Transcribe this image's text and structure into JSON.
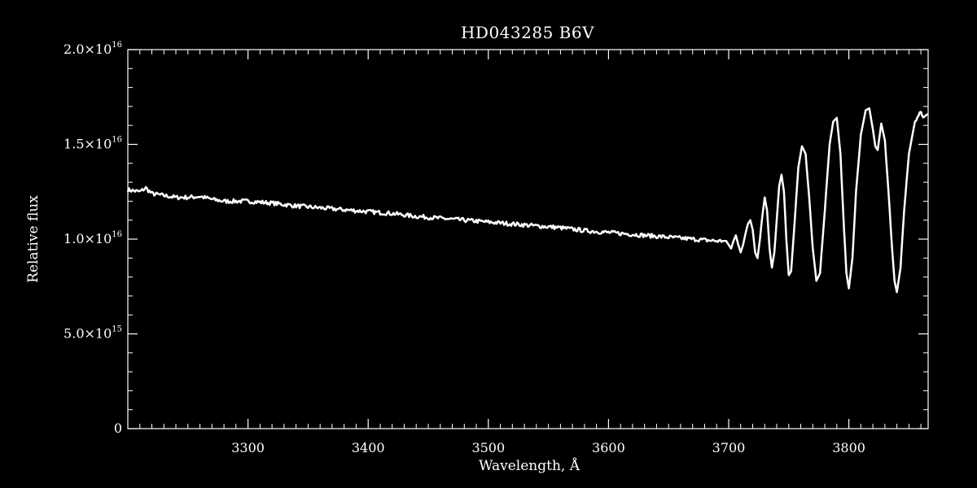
{
  "chart_data": {
    "type": "line",
    "title": "HD043285   B6V",
    "xlabel": "Wavelength, Å",
    "ylabel": "Relative flux",
    "xlim": [
      3200,
      3866
    ],
    "ylim": [
      0,
      2e+16
    ],
    "grid": false,
    "x_ticks": [
      {
        "value": 3300,
        "label": "3300"
      },
      {
        "value": 3400,
        "label": "3400"
      },
      {
        "value": 3500,
        "label": "3500"
      },
      {
        "value": 3600,
        "label": "3600"
      },
      {
        "value": 3700,
        "label": "3700"
      },
      {
        "value": 3800,
        "label": "3800"
      }
    ],
    "y_ticks": [
      {
        "value": 0,
        "mantissa": "0",
        "exponent": ""
      },
      {
        "value": 5000000000000000.0,
        "mantissa": "5.0×10",
        "exponent": "15"
      },
      {
        "value": 1e+16,
        "mantissa": "1.0×10",
        "exponent": "16"
      },
      {
        "value": 1.5e+16,
        "mantissa": "1.5×10",
        "exponent": "16"
      },
      {
        "value": 2e+16,
        "mantissa": "2.0×10",
        "exponent": "16"
      }
    ],
    "series": [
      {
        "color": "#ffffff",
        "x": [
          3200,
          3210,
          3215,
          3220,
          3230,
          3240,
          3250,
          3260,
          3270,
          3280,
          3300,
          3320,
          3340,
          3360,
          3380,
          3400,
          3420,
          3440,
          3460,
          3480,
          3500,
          3520,
          3540,
          3560,
          3580,
          3600,
          3620,
          3640,
          3660,
          3680,
          3690,
          3698,
          3700,
          3702,
          3704,
          3706,
          3708,
          3710,
          3712,
          3714,
          3716,
          3718,
          3720,
          3722,
          3724,
          3726,
          3728,
          3730,
          3732,
          3734,
          3736,
          3738,
          3740,
          3742,
          3744,
          3746,
          3748,
          3750,
          3752,
          3755,
          3758,
          3761,
          3764,
          3767,
          3770,
          3773,
          3776,
          3780,
          3784,
          3787,
          3790,
          3793,
          3796,
          3798,
          3800,
          3803,
          3806,
          3810,
          3814,
          3817,
          3820,
          3822,
          3824,
          3827,
          3830,
          3833,
          3836,
          3838,
          3840,
          3843,
          3846,
          3850,
          3855,
          3858,
          3860,
          3862,
          3866
        ],
        "y": [
          1.26e+16,
          1.25e+16,
          1.27e+16,
          1.24e+16,
          1.23e+16,
          1.22e+16,
          1.22e+16,
          1.225e+16,
          1.21e+16,
          1.2e+16,
          1.2e+16,
          1.19e+16,
          1.175e+16,
          1.165e+16,
          1.155e+16,
          1.145e+16,
          1.135e+16,
          1.12e+16,
          1.11e+16,
          1.1e+16,
          1.09e+16,
          1.08e+16,
          1.07e+16,
          1.06e+16,
          1.045e+16,
          1.035e+16,
          1.025e+16,
          1.015e+16,
          1.005e+16,
          9950000000000000.0,
          9900000000000000.0,
          9900000000000000.0,
          9700000000000000.0,
          9500000000000000.0,
          9900000000000000.0,
          1.02e+16,
          9700000000000000.0,
          9300000000000000.0,
          9700000000000000.0,
          1.03e+16,
          1.08e+16,
          1.1e+16,
          1.05e+16,
          9300000000000000.0,
          9000000000000000.0,
          1e+16,
          1.12e+16,
          1.22e+16,
          1.15e+16,
          9500000000000000.0,
          8500000000000000.0,
          9300000000000000.0,
          1.1e+16,
          1.28e+16,
          1.34e+16,
          1.25e+16,
          1e+16,
          8100000000000000.0,
          8300000000000000.0,
          1.1e+16,
          1.38e+16,
          1.49e+16,
          1.45e+16,
          1.22e+16,
          9500000000000000.0,
          7800000000000000.0,
          8200000000000000.0,
          1.15e+16,
          1.5e+16,
          1.62e+16,
          1.64e+16,
          1.45e+16,
          1.05e+16,
          8200000000000000.0,
          7400000000000000.0,
          9000000000000000.0,
          1.25e+16,
          1.55e+16,
          1.68e+16,
          1.69e+16,
          1.58e+16,
          1.49e+16,
          1.47e+16,
          1.61e+16,
          1.52e+16,
          1.25e+16,
          9500000000000000.0,
          7800000000000000.0,
          7200000000000000.0,
          8500000000000000.0,
          1.15e+16,
          1.45e+16,
          1.62e+16,
          1.65e+16,
          1.67e+16,
          1.64e+16,
          1.66e+16
        ]
      }
    ]
  }
}
